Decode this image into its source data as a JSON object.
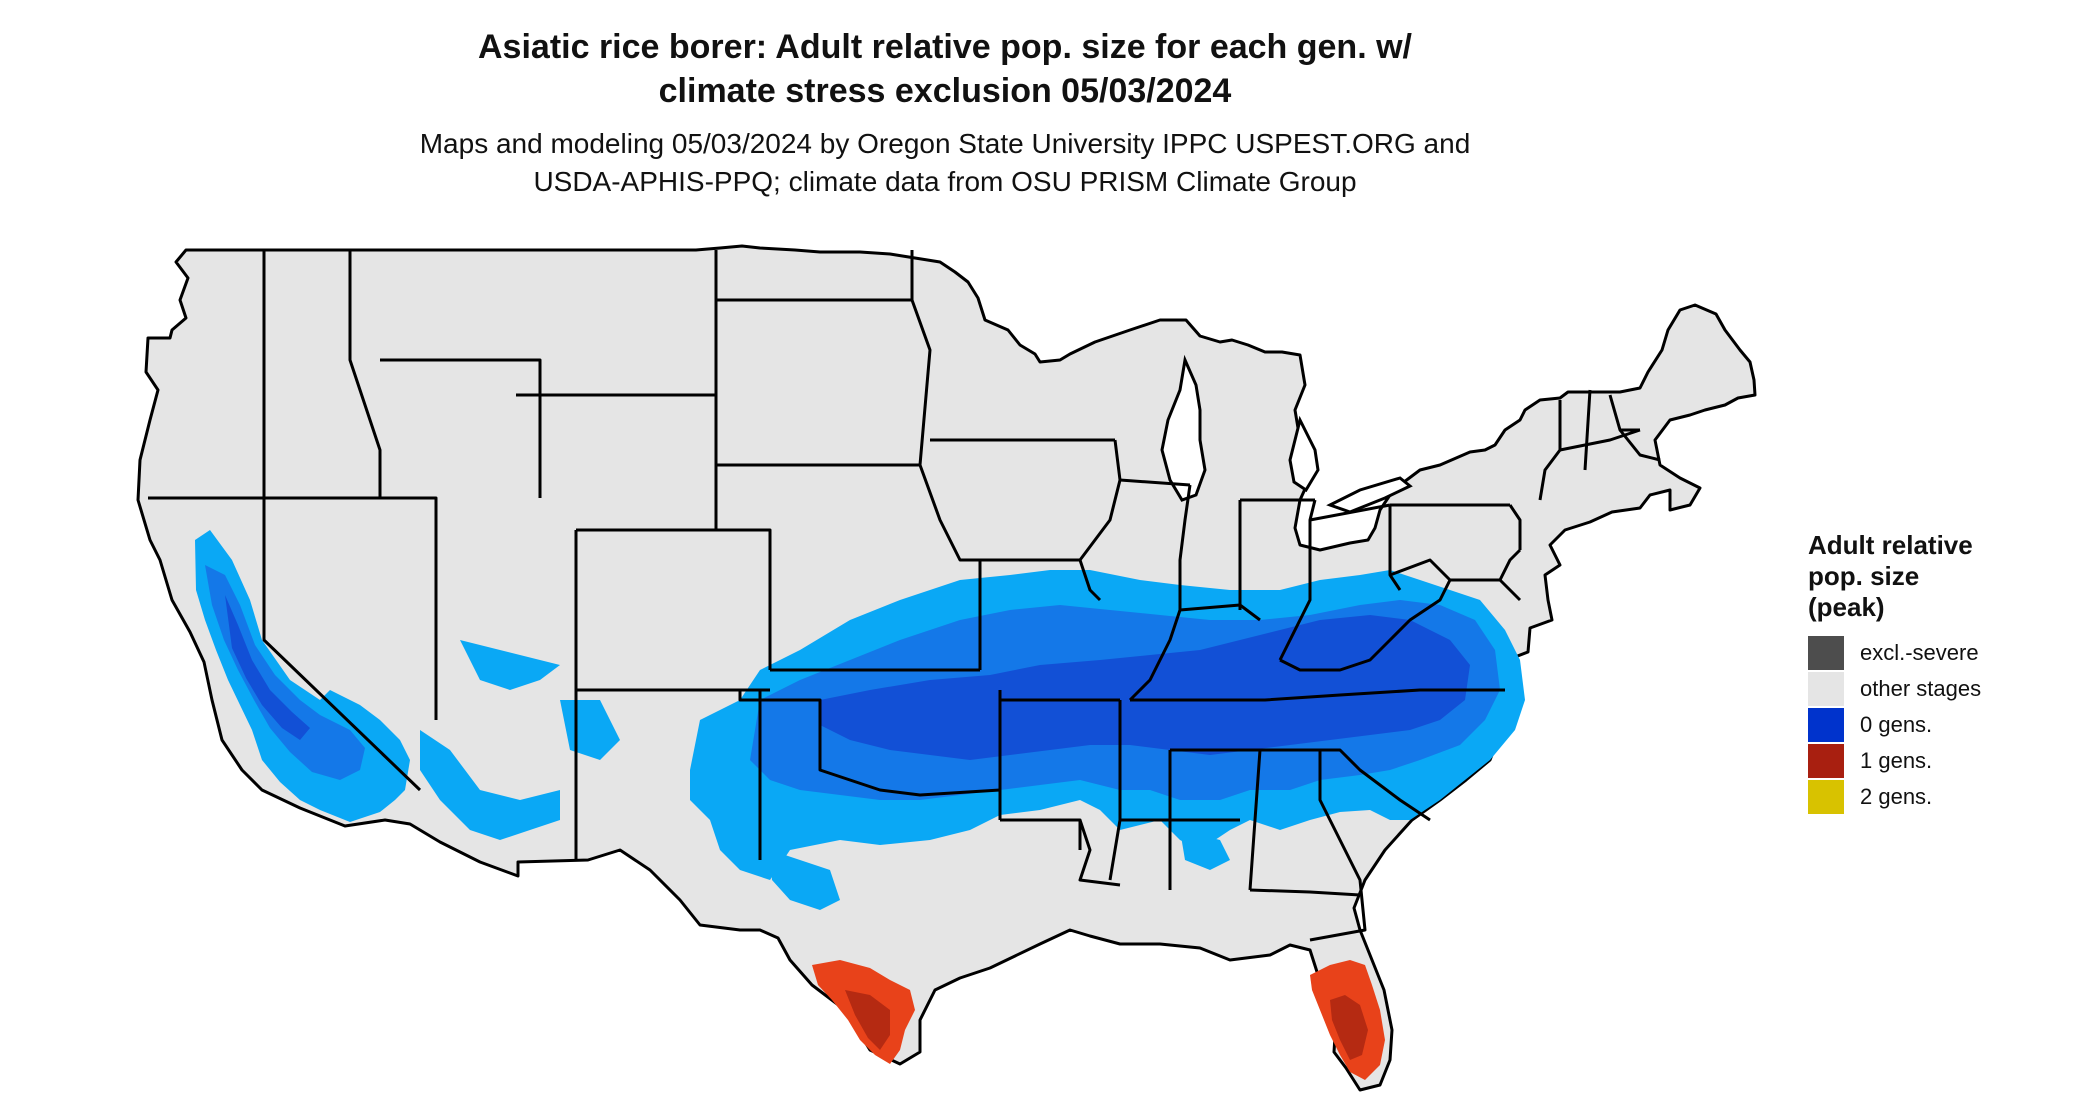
{
  "title_line1": "Asiatic rice borer: Adult relative pop. size for each gen. w/",
  "title_line2": "climate stress exclusion 05/03/2024",
  "subtitle_line1": "Maps and modeling 05/03/2024 by Oregon State University IPPC USPEST.ORG and",
  "subtitle_line2": "USDA-APHIS-PPQ; climate data from OSU PRISM Climate Group",
  "legend": {
    "title_line1": "Adult relative",
    "title_line2": "pop. size",
    "title_line3": "(peak)",
    "items": [
      {
        "label": "excl.-severe",
        "color": "#4d4d4d"
      },
      {
        "label": "other stages",
        "color": "#e5e5e5"
      },
      {
        "label": "0 gens.",
        "color": "#0033cc"
      },
      {
        "label": "1 gens.",
        "color": "#a81f10"
      },
      {
        "label": "2 gens.",
        "color": "#d8c200"
      }
    ]
  },
  "colors": {
    "land": "#e5e5e5",
    "border": "#000000",
    "zone_light_blue": "#0aa8f5",
    "zone_mid_blue": "#1478e8",
    "zone_dark_blue": "#1250d6",
    "zone_red": "#e8421a",
    "zone_dark_red": "#b52a12"
  }
}
